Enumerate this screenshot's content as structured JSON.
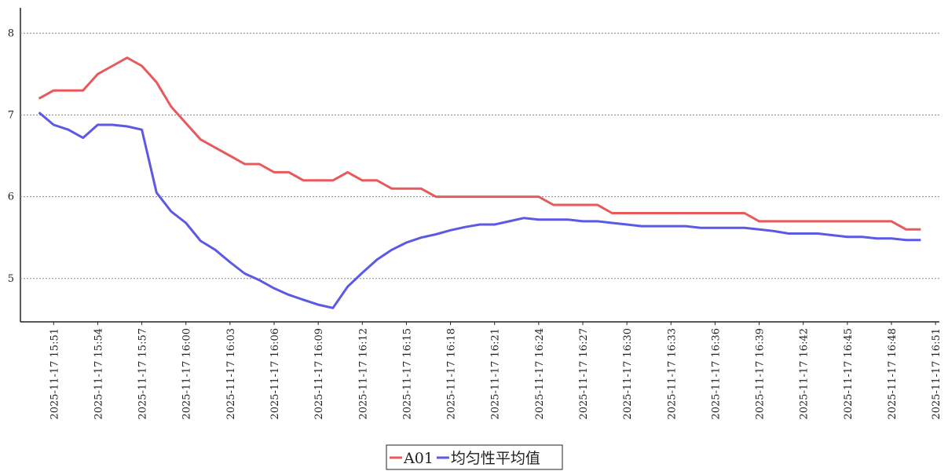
{
  "chart_data": {
    "type": "line",
    "x": [
      "2025-11-17 15:50",
      "2025-11-17 15:51",
      "2025-11-17 15:52",
      "2025-11-17 15:53",
      "2025-11-17 15:54",
      "2025-11-17 15:55",
      "2025-11-17 15:56",
      "2025-11-17 15:57",
      "2025-11-17 15:58",
      "2025-11-17 15:59",
      "2025-11-17 16:00",
      "2025-11-17 16:01",
      "2025-11-17 16:02",
      "2025-11-17 16:03",
      "2025-11-17 16:04",
      "2025-11-17 16:05",
      "2025-11-17 16:06",
      "2025-11-17 16:07",
      "2025-11-17 16:08",
      "2025-11-17 16:09",
      "2025-11-17 16:10",
      "2025-11-17 16:11",
      "2025-11-17 16:12",
      "2025-11-17 16:13",
      "2025-11-17 16:14",
      "2025-11-17 16:15",
      "2025-11-17 16:16",
      "2025-11-17 16:17",
      "2025-11-17 16:18",
      "2025-11-17 16:19",
      "2025-11-17 16:20",
      "2025-11-17 16:21",
      "2025-11-17 16:22",
      "2025-11-17 16:23",
      "2025-11-17 16:24",
      "2025-11-17 16:25",
      "2025-11-17 16:26",
      "2025-11-17 16:27",
      "2025-11-17 16:28",
      "2025-11-17 16:29",
      "2025-11-17 16:30",
      "2025-11-17 16:31",
      "2025-11-17 16:32",
      "2025-11-17 16:33",
      "2025-11-17 16:34",
      "2025-11-17 16:35",
      "2025-11-17 16:36",
      "2025-11-17 16:37",
      "2025-11-17 16:38",
      "2025-11-17 16:39",
      "2025-11-17 16:40",
      "2025-11-17 16:41",
      "2025-11-17 16:42",
      "2025-11-17 16:43",
      "2025-11-17 16:44",
      "2025-11-17 16:45",
      "2025-11-17 16:46",
      "2025-11-17 16:47",
      "2025-11-17 16:48",
      "2025-11-17 16:49",
      "2025-11-17 16:50"
    ],
    "series": [
      {
        "name": "A01",
        "color": "#e8595c",
        "values": [
          7.2,
          7.3,
          7.3,
          7.3,
          7.5,
          7.6,
          7.7,
          7.6,
          7.4,
          7.1,
          6.9,
          6.7,
          6.6,
          6.5,
          6.4,
          6.4,
          6.3,
          6.3,
          6.2,
          6.2,
          6.2,
          6.3,
          6.2,
          6.2,
          6.1,
          6.1,
          6.1,
          6.0,
          6.0,
          6.0,
          6.0,
          6.0,
          6.0,
          6.0,
          6.0,
          5.9,
          5.9,
          5.9,
          5.9,
          5.8,
          5.8,
          5.8,
          5.8,
          5.8,
          5.8,
          5.8,
          5.8,
          5.8,
          5.8,
          5.7,
          5.7,
          5.7,
          5.7,
          5.7,
          5.7,
          5.7,
          5.7,
          5.7,
          5.7,
          5.6,
          5.6
        ]
      },
      {
        "name": "均匀性平均值",
        "color": "#5b59e6",
        "values": [
          7.03,
          6.88,
          6.82,
          6.72,
          6.88,
          6.88,
          6.86,
          6.82,
          6.05,
          5.82,
          5.68,
          5.46,
          5.35,
          5.2,
          5.06,
          4.98,
          4.88,
          4.8,
          4.74,
          4.68,
          4.64,
          4.9,
          5.07,
          5.23,
          5.35,
          5.44,
          5.5,
          5.54,
          5.59,
          5.63,
          5.66,
          5.66,
          5.7,
          5.74,
          5.72,
          5.72,
          5.72,
          5.7,
          5.7,
          5.68,
          5.66,
          5.64,
          5.64,
          5.64,
          5.64,
          5.62,
          5.62,
          5.62,
          5.62,
          5.6,
          5.58,
          5.55,
          5.55,
          5.55,
          5.53,
          5.51,
          5.51,
          5.49,
          5.49,
          5.47,
          5.47
        ]
      }
    ],
    "xticks": [
      "2025-11-17 15:51",
      "2025-11-17 15:54",
      "2025-11-17 15:57",
      "2025-11-17 16:00",
      "2025-11-17 16:03",
      "2025-11-17 16:06",
      "2025-11-17 16:09",
      "2025-11-17 16:12",
      "2025-11-17 16:15",
      "2025-11-17 16:18",
      "2025-11-17 16:21",
      "2025-11-17 16:24",
      "2025-11-17 16:27",
      "2025-11-17 16:30",
      "2025-11-17 16:33",
      "2025-11-17 16:36",
      "2025-11-17 16:39",
      "2025-11-17 16:42",
      "2025-11-17 16:45",
      "2025-11-17 16:48",
      "2025-11-17 16:51"
    ],
    "ylim": [
      4.47,
      8.31
    ],
    "yticks": [
      5,
      6,
      7,
      8
    ],
    "grid": true,
    "legend": "bottom"
  }
}
